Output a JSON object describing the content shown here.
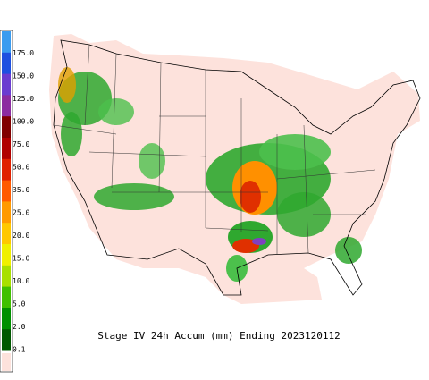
{
  "legend": {
    "labels": [
      "175.0",
      "150.0",
      "125.0",
      "100.0",
      "75.0",
      "50.0",
      "35.0",
      "25.0",
      "20.0",
      "15.0",
      "10.0",
      "5.0",
      "2.0",
      "0.1"
    ]
  },
  "title": "Stage IV 24h Accum (mm) Ending 2023120112"
}
